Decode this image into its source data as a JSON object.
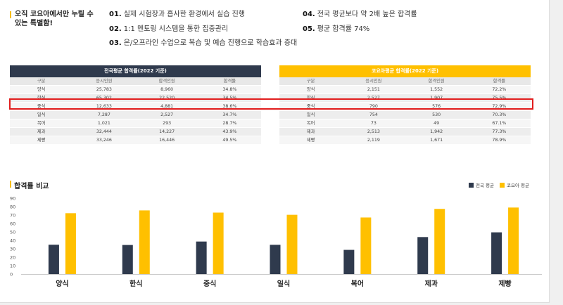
{
  "intro": {
    "title": "오직 코요아에서만 누릴 수 있는 특별함!",
    "features": [
      {
        "num": "01.",
        "text": "실제 시험장과 흡사한 환경에서 실습 진행"
      },
      {
        "num": "02.",
        "text": "1:1 멘토링 시스템을 통한 집중관리"
      },
      {
        "num": "03.",
        "text": "온/오프라인 수업으로 복습 및 예습 진행으로 학습효과 증대"
      },
      {
        "num": "04.",
        "text": "전국 평균보다 약 2배 높은 합격률"
      },
      {
        "num": "05.",
        "text": "평균 합격률 74%"
      }
    ]
  },
  "colors": {
    "national": "#2f3a4d",
    "koyoa": "#ffc000",
    "highlight": "#e11d1d"
  },
  "national_table": {
    "title": "전국평균 합격률(2022 기준)",
    "headers": [
      "구분",
      "응시인원",
      "합격인원",
      "합격률"
    ],
    "rows": [
      [
        "양식",
        "25,783",
        "8,960",
        "34.8%"
      ],
      [
        "한식",
        "65,302",
        "22,520",
        "34.5%"
      ],
      [
        "중식",
        "12,633",
        "4,881",
        "38.6%"
      ],
      [
        "일식",
        "7,287",
        "2,527",
        "34.7%"
      ],
      [
        "복어",
        "1,021",
        "293",
        "28.7%"
      ],
      [
        "제과",
        "32,444",
        "14,227",
        "43.9%"
      ],
      [
        "제빵",
        "33,246",
        "16,446",
        "49.5%"
      ]
    ]
  },
  "koyoa_table": {
    "title": "코요아평균 합격률(2022 기준)",
    "headers": [
      "구분",
      "응시인원",
      "합격인원",
      "합격률"
    ],
    "rows": [
      [
        "양식",
        "2,151",
        "1,552",
        "72.2%"
      ],
      [
        "한식",
        "2,527",
        "1,907",
        "75.5%"
      ],
      [
        "중식",
        "790",
        "576",
        "72.9%"
      ],
      [
        "일식",
        "754",
        "530",
        "70.3%"
      ],
      [
        "복어",
        "73",
        "49",
        "67.1%"
      ],
      [
        "제과",
        "2,513",
        "1,942",
        "77.3%"
      ],
      [
        "제빵",
        "2,119",
        "1,671",
        "78.9%"
      ]
    ]
  },
  "chart_data": {
    "type": "bar",
    "title": "합격률 비교",
    "categories": [
      "양식",
      "한식",
      "중식",
      "일식",
      "복어",
      "제과",
      "제빵"
    ],
    "series": [
      {
        "name": "전국 평균",
        "color": "#2f3a4d",
        "values": [
          34.8,
          34.5,
          38.6,
          34.7,
          28.7,
          43.9,
          49.5
        ]
      },
      {
        "name": "코요아 평균",
        "color": "#ffc000",
        "values": [
          72.2,
          75.5,
          72.9,
          70.3,
          67.1,
          77.3,
          78.9
        ]
      }
    ],
    "ylim": [
      0,
      90
    ],
    "yticks": [
      0,
      10,
      20,
      30,
      40,
      50,
      60,
      70,
      80,
      90
    ],
    "xlabel": "",
    "ylabel": "",
    "legend": "top-right"
  }
}
